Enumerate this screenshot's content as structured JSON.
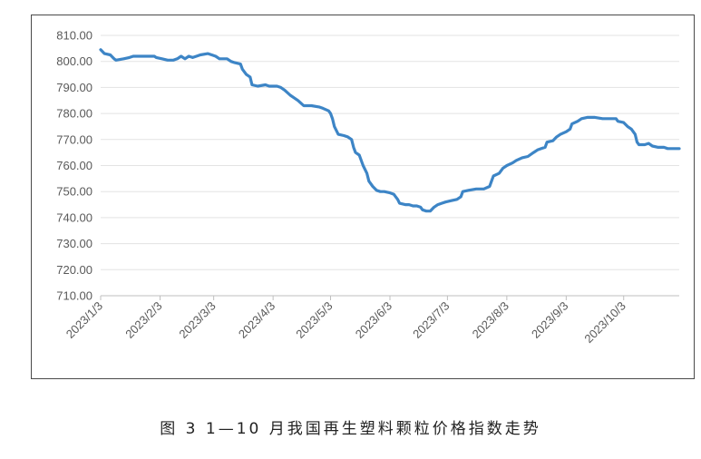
{
  "caption": "图 3  1—10 月我国再生塑料颗粒价格指数走势",
  "chart_data": {
    "type": "line",
    "title": "",
    "xlabel": "",
    "ylabel": "",
    "ylim": [
      710,
      810
    ],
    "grid": true,
    "legend": "none",
    "line_color": "#3d85c6",
    "y_ticks": [
      "710.00",
      "720.00",
      "730.00",
      "740.00",
      "750.00",
      "760.00",
      "770.00",
      "780.00",
      "790.00",
      "800.00",
      "810.00"
    ],
    "x_ticks": [
      {
        "label": "2023/1/3",
        "day": 0
      },
      {
        "label": "2023/2/3",
        "day": 31
      },
      {
        "label": "2023/3/3",
        "day": 59
      },
      {
        "label": "2023/4/3",
        "day": 90
      },
      {
        "label": "2023/5/3",
        "day": 120
      },
      {
        "label": "2023/6/3",
        "day": 151
      },
      {
        "label": "2023/7/3",
        "day": 181
      },
      {
        "label": "2023/8/3",
        "day": 212
      },
      {
        "label": "2023/9/3",
        "day": 243
      },
      {
        "label": "2023/10/3",
        "day": 273
      }
    ],
    "x_max_day": 302,
    "series": [
      {
        "name": "",
        "points": [
          [
            0,
            804.5
          ],
          [
            2,
            803
          ],
          [
            5,
            802.5
          ],
          [
            7,
            801
          ],
          [
            8,
            800.5
          ],
          [
            12,
            801
          ],
          [
            15,
            801.5
          ],
          [
            17,
            802
          ],
          [
            20,
            802
          ],
          [
            25,
            802
          ],
          [
            28,
            802
          ],
          [
            29,
            801.5
          ],
          [
            32,
            801
          ],
          [
            35,
            800.5
          ],
          [
            38,
            800.5
          ],
          [
            40,
            801
          ],
          [
            42,
            802
          ],
          [
            44,
            801
          ],
          [
            46,
            802
          ],
          [
            48,
            801.5
          ],
          [
            50,
            802
          ],
          [
            52,
            802.5
          ],
          [
            56,
            803
          ],
          [
            58,
            802.5
          ],
          [
            60,
            802
          ],
          [
            62,
            801
          ],
          [
            66,
            801
          ],
          [
            68,
            800
          ],
          [
            70,
            799.5
          ],
          [
            73,
            799
          ],
          [
            74,
            797
          ],
          [
            76,
            795
          ],
          [
            78,
            794
          ],
          [
            79,
            791
          ],
          [
            82,
            790.5
          ],
          [
            86,
            791
          ],
          [
            88,
            790.5
          ],
          [
            92,
            790.5
          ],
          [
            94,
            790
          ],
          [
            96,
            789
          ],
          [
            99,
            787
          ],
          [
            101,
            786
          ],
          [
            103,
            785
          ],
          [
            106,
            783
          ],
          [
            110,
            783
          ],
          [
            114,
            782.5
          ],
          [
            116,
            782
          ],
          [
            119,
            781
          ],
          [
            120,
            780
          ],
          [
            121,
            778
          ],
          [
            122,
            775
          ],
          [
            124,
            772
          ],
          [
            127,
            771.5
          ],
          [
            129,
            771
          ],
          [
            131,
            770
          ],
          [
            132,
            767
          ],
          [
            133,
            765
          ],
          [
            135,
            764
          ],
          [
            137,
            760
          ],
          [
            139,
            757
          ],
          [
            140,
            754
          ],
          [
            142,
            752
          ],
          [
            144,
            750.5
          ],
          [
            146,
            750
          ],
          [
            148,
            750
          ],
          [
            151,
            749.5
          ],
          [
            153,
            749
          ],
          [
            154,
            748
          ],
          [
            155,
            747
          ],
          [
            156,
            745.5
          ],
          [
            159,
            745
          ],
          [
            161,
            745
          ],
          [
            163,
            744.5
          ],
          [
            165,
            744.5
          ],
          [
            167,
            744
          ],
          [
            168,
            743
          ],
          [
            170,
            742.5
          ],
          [
            172,
            742.5
          ],
          [
            174,
            744
          ],
          [
            176,
            745
          ],
          [
            178,
            745.5
          ],
          [
            180,
            746
          ],
          [
            183,
            746.5
          ],
          [
            186,
            747
          ],
          [
            188,
            748
          ],
          [
            189,
            750
          ],
          [
            192,
            750.5
          ],
          [
            196,
            751
          ],
          [
            200,
            751
          ],
          [
            203,
            752
          ],
          [
            204,
            754
          ],
          [
            205,
            756
          ],
          [
            208,
            757
          ],
          [
            210,
            759
          ],
          [
            212,
            760
          ],
          [
            215,
            761
          ],
          [
            217,
            762
          ],
          [
            220,
            763
          ],
          [
            223,
            763.5
          ],
          [
            226,
            765
          ],
          [
            228,
            766
          ],
          [
            230,
            766.5
          ],
          [
            232,
            767
          ],
          [
            233,
            769
          ],
          [
            236,
            769.5
          ],
          [
            238,
            771
          ],
          [
            240,
            772
          ],
          [
            243,
            773
          ],
          [
            245,
            774
          ],
          [
            246,
            776
          ],
          [
            249,
            777
          ],
          [
            251,
            778
          ],
          [
            254,
            778.5
          ],
          [
            258,
            778.5
          ],
          [
            262,
            778
          ],
          [
            266,
            778
          ],
          [
            269,
            778
          ],
          [
            270,
            777
          ],
          [
            273,
            776.5
          ],
          [
            275,
            775
          ],
          [
            277,
            774
          ],
          [
            279,
            772
          ],
          [
            280,
            769
          ],
          [
            281,
            768
          ],
          [
            284,
            768
          ],
          [
            286,
            768.5
          ],
          [
            288,
            767.5
          ],
          [
            291,
            767
          ],
          [
            294,
            767
          ],
          [
            296,
            766.5
          ],
          [
            302,
            766.5
          ]
        ]
      }
    ]
  }
}
